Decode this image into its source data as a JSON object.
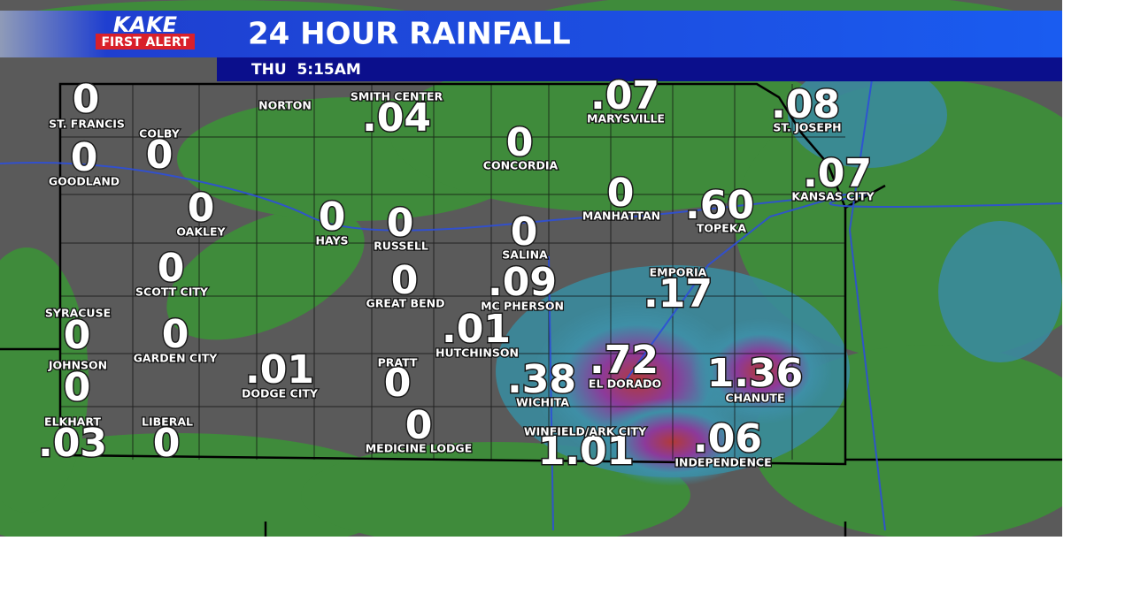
{
  "header": {
    "logo_top": "KAKE",
    "logo_bottom": "FIRST ALERT",
    "title": "24 HOUR RAINFALL",
    "time": "THU  5:15AM"
  },
  "cities": [
    {
      "name": "ST. FRANCIS",
      "value": "0"
    },
    {
      "name": "GOODLAND",
      "value": "0"
    },
    {
      "name": "COLBY",
      "value": "0"
    },
    {
      "name": "OAKLEY",
      "value": "0"
    },
    {
      "name": "NORTON"
    },
    {
      "name": "HAYS",
      "value": "0"
    },
    {
      "name": "RUSSELL",
      "value": "0"
    },
    {
      "name": "SMITH CENTER",
      "value": ".04"
    },
    {
      "name": "CONCORDIA",
      "value": "0"
    },
    {
      "name": "MARYSVILLE",
      "value": ".07"
    },
    {
      "name": "ST. JOSEPH",
      "value": ".08"
    },
    {
      "name": "KANSAS CITY",
      "value": ".07"
    },
    {
      "name": "MANHATTAN",
      "value": "0"
    },
    {
      "name": "TOPEKA",
      "value": ".60"
    },
    {
      "name": "SALINA",
      "value": "0"
    },
    {
      "name": "SCOTT CITY",
      "value": "0"
    },
    {
      "name": "GREAT BEND",
      "value": "0"
    },
    {
      "name": "MC PHERSON",
      "value": ".09"
    },
    {
      "name": "EMPORIA",
      "value": ".17"
    },
    {
      "name": "SYRACUSE",
      "value": "0"
    },
    {
      "name": "GARDEN CITY",
      "value": "0"
    },
    {
      "name": "HUTCHINSON",
      "value": ".01"
    },
    {
      "name": "JOHNSON",
      "value": "0"
    },
    {
      "name": "DODGE CITY",
      "value": ".01"
    },
    {
      "name": "PRATT",
      "value": "0"
    },
    {
      "name": "EL DORADO",
      "value": ".72"
    },
    {
      "name": "WICHITA",
      "value": ".38"
    },
    {
      "name": "CHANUTE",
      "value": "1.36"
    },
    {
      "name": "ELKHART",
      "value": ".03"
    },
    {
      "name": "LIBERAL",
      "value": "0"
    },
    {
      "name": "MEDICINE LODGE",
      "value": "0"
    },
    {
      "name": "WINFIELD/ARK CITY",
      "value": "1.01"
    },
    {
      "name": "INDEPENDENCE",
      "value": ".06"
    }
  ]
}
